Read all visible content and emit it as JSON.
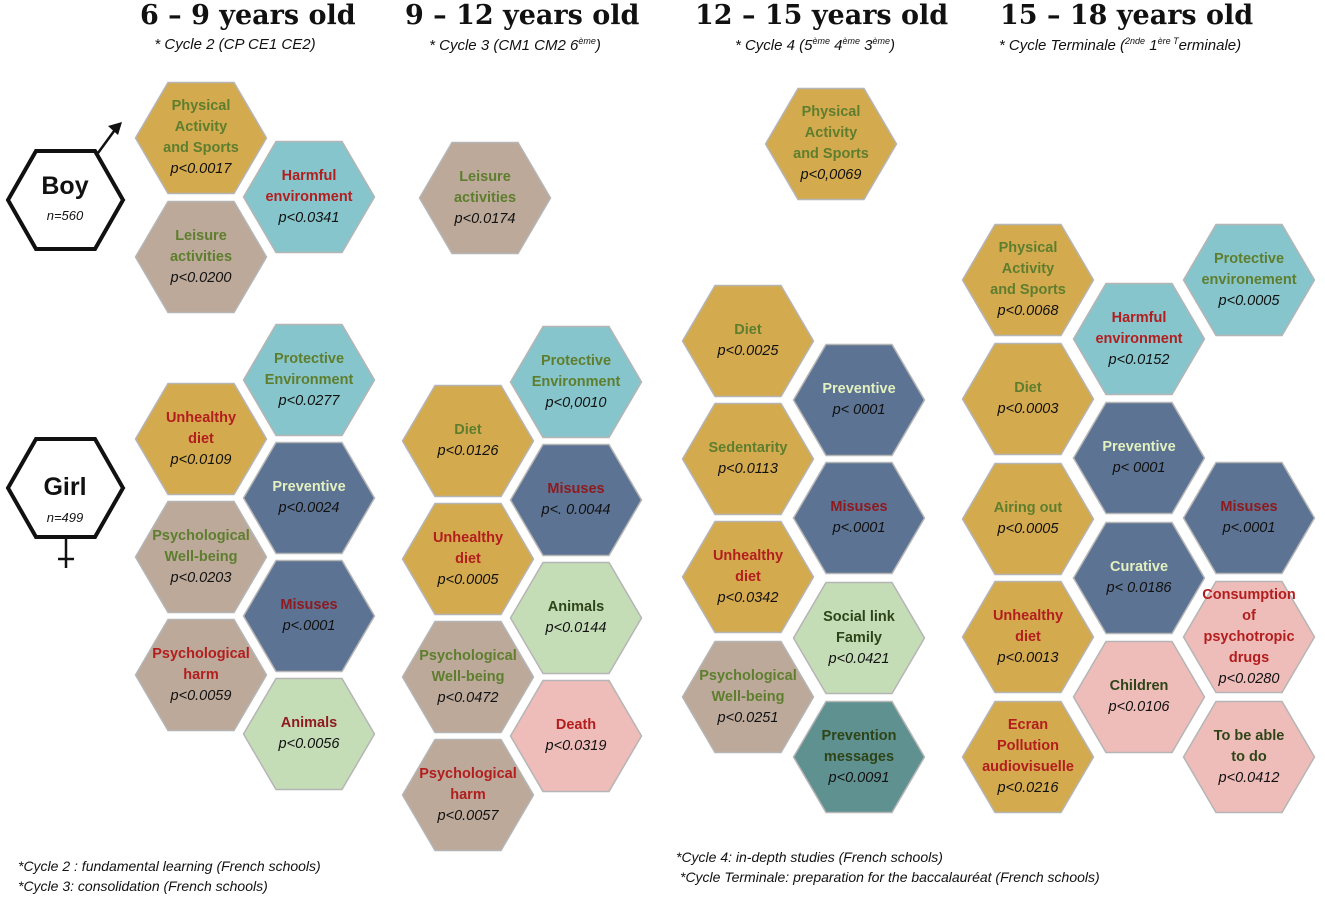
{
  "colors": {
    "gold": "#D4AA4F",
    "teal": "#86C5CC",
    "taupe": "#BCA99A",
    "slate": "#5C7393",
    "sage": "#C5DDB7",
    "pink": "#EEBDBA",
    "darkteal": "#5E9190",
    "label_green": "#5E7E2E",
    "label_red": "#B21E1E",
    "label_darkred": "#8E1A1E",
    "label_lightgreen": "#E3F0C0",
    "label_darkgreen": "#2E4418"
  },
  "columns": [
    {
      "title": "6 – 9 years old",
      "sub_text": "* Cycle 2 (CP CE1 CE2)"
    },
    {
      "title": "9 – 12 years old",
      "sub_text": "* Cycle 3 (CM1 CM2 6ème)"
    },
    {
      "title": "12 – 15 years old",
      "sub_text": "* Cycle 4 (5ème 4ème 3ème)"
    },
    {
      "title": "15 – 18 years old",
      "sub_text": "* Cycle Terminale (2nde 1ère Terminale)"
    }
  ],
  "sub_parts": {
    "c2": {
      "pre": "* Cycle 3 (CM1 CM2 6",
      "s1": "ème",
      "post": ")"
    },
    "c3": {
      "pre": "* Cycle 4 (5",
      "s1": "ème",
      "mid1": " 4",
      "s2": "ème",
      "mid2": " 3",
      "s3": "ème",
      "post": ")"
    },
    "c4": {
      "pre": "* Cycle Terminale (",
      "s1": "2nde",
      "mid1": " 1",
      "s2": "ère T",
      "post": "erminale)"
    }
  },
  "genders": {
    "boy": {
      "label": "Boy",
      "n": "n=560",
      "symbol": "male"
    },
    "girl": {
      "label": "Girl",
      "n": "n=499",
      "symbol": "female"
    }
  },
  "hexes": [
    {
      "label": "Physical\nActivity\nand Sports",
      "p": "p<0.0017",
      "fill": "gold",
      "color": "label_green"
    },
    {
      "label": "Harmful\nenvironment",
      "p": "p<0.0341",
      "fill": "teal",
      "color": "label_red"
    },
    {
      "label": "Leisure\nactivities",
      "p": "p<0.0200",
      "fill": "taupe",
      "color": "label_green"
    },
    {
      "label": "Protective\nEnvironment",
      "p": "p<0.0277",
      "fill": "teal",
      "color": "label_green"
    },
    {
      "label": "Unhealthy\ndiet",
      "p": "p<0.0109",
      "fill": "gold",
      "color": "label_red"
    },
    {
      "label": "Preventive",
      "p": "p<0.0024",
      "fill": "slate",
      "color": "label_lightgreen"
    },
    {
      "label": "Psychological\nWell-being",
      "p": "p<0.0203",
      "fill": "taupe",
      "color": "label_green"
    },
    {
      "label": "Misuses",
      "p": "p<.0001",
      "fill": "slate",
      "color": "label_darkred"
    },
    {
      "label": "Psychological\nharm",
      "p": "p<0.0059",
      "fill": "taupe",
      "color": "label_red"
    },
    {
      "label": "Animals",
      "p": "p<0.0056",
      "fill": "sage",
      "color": "label_darkred"
    },
    {
      "label": "Leisure\nactivities",
      "p": "p<0.0174",
      "fill": "taupe",
      "color": "label_green"
    },
    {
      "label": "Protective\nEnvironment",
      "p": "p<0,0010",
      "fill": "teal",
      "color": "label_green"
    },
    {
      "label": "Diet",
      "p": "p<0.0126",
      "fill": "gold",
      "color": "label_green"
    },
    {
      "label": "Misuses",
      "p": "p<. 0.0044",
      "fill": "slate",
      "color": "label_darkred"
    },
    {
      "label": "Unhealthy\ndiet",
      "p": "p<0.0005",
      "fill": "gold",
      "color": "label_red"
    },
    {
      "label": "Animals",
      "p": "p<0.0144",
      "fill": "sage",
      "color": "label_darkgreen"
    },
    {
      "label": "Psychological\nWell-being",
      "p": "p<0.0472",
      "fill": "taupe",
      "color": "label_green"
    },
    {
      "label": "Death",
      "p": "p<0.0319",
      "fill": "pink",
      "color": "label_red"
    },
    {
      "label": "Psychological\nharm",
      "p": "p<0.0057",
      "fill": "taupe",
      "color": "label_red"
    },
    {
      "label": "Physical\nActivity\nand Sports",
      "p": "p<0,0069",
      "fill": "gold",
      "color": "label_green"
    },
    {
      "label": "Diet",
      "p": "p<0.0025",
      "fill": "gold",
      "color": "label_green"
    },
    {
      "label": "Preventive",
      "p": "p< 0001",
      "fill": "slate",
      "color": "label_lightgreen"
    },
    {
      "label": "Sedentarity",
      "p": "p<0.0113",
      "fill": "gold",
      "color": "label_green"
    },
    {
      "label": "Misuses",
      "p": "p<.0001",
      "fill": "slate",
      "color": "label_darkred"
    },
    {
      "label": "Unhealthy\ndiet",
      "p": "p<0.0342",
      "fill": "gold",
      "color": "label_red"
    },
    {
      "label": "Social link\nFamily",
      "p": "p<0.0421",
      "fill": "sage",
      "color": "label_darkgreen"
    },
    {
      "label": "Psychological\nWell-being",
      "p": "p<0.0251",
      "fill": "taupe",
      "color": "label_green"
    },
    {
      "label": "Prevention\nmessages",
      "p": "p<0.0091",
      "fill": "darkteal",
      "color": "label_darkgreen"
    },
    {
      "label": "Physical\nActivity\nand Sports",
      "p": "p<0.0068",
      "fill": "gold",
      "color": "label_green"
    },
    {
      "label": "Protective\nenvironement",
      "p": "p<0.0005",
      "fill": "teal",
      "color": "label_green"
    },
    {
      "label": "Harmful\nenvironment",
      "p": "p<0.0152",
      "fill": "teal",
      "color": "label_red"
    },
    {
      "label": "Diet",
      "p": "p<0.0003",
      "fill": "gold",
      "color": "label_green"
    },
    {
      "label": "Preventive",
      "p": "p< 0001",
      "fill": "slate",
      "color": "label_lightgreen"
    },
    {
      "label": "Airing out",
      "p": "p<0.0005",
      "fill": "gold",
      "color": "label_green"
    },
    {
      "label": "Misuses",
      "p": "p<.0001",
      "fill": "slate",
      "color": "label_darkred"
    },
    {
      "label": "Curative",
      "p": "p< 0.0186",
      "fill": "slate",
      "color": "label_lightgreen"
    },
    {
      "label": "Unhealthy\ndiet",
      "p": "p<0.0013",
      "fill": "gold",
      "color": "label_red"
    },
    {
      "label": "Consumption\nof psychotropic\ndrugs",
      "p": "p<0.0280",
      "fill": "pink",
      "color": "label_red"
    },
    {
      "label": "Children",
      "p": "p<0.0106",
      "fill": "pink",
      "color": "label_darkgreen"
    },
    {
      "label": "Ecran\nPollution\naudiovisuelle",
      "p": "p<0.0216",
      "fill": "gold",
      "color": "label_red"
    },
    {
      "label": "To be able\nto do",
      "p": "p<0.0412",
      "fill": "pink",
      "color": "label_darkgreen"
    }
  ],
  "footnotes": {
    "cycle2": "*Cycle 2 : fundamental learning (French schools)",
    "cycle3": "*Cycle 3: consolidation (French schools)",
    "cycle4": "*Cycle 4: in-depth studies (French schools)",
    "terminale": "*Cycle Terminale: preparation for the baccalauréat (French schools)"
  }
}
